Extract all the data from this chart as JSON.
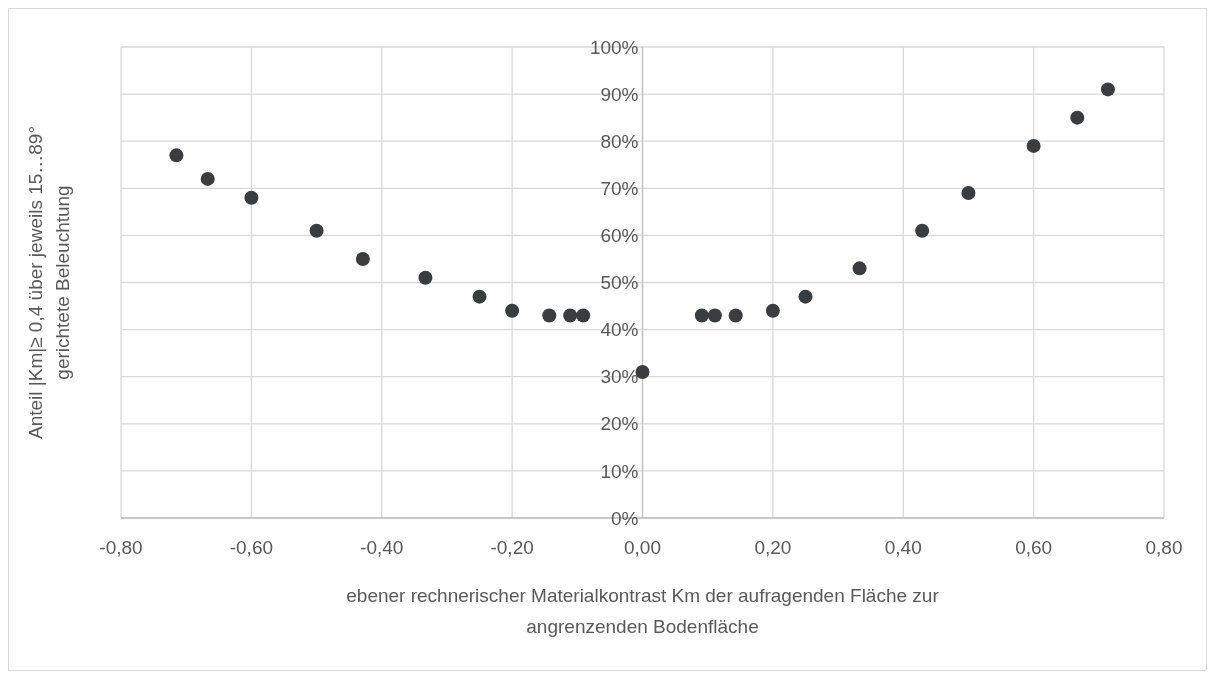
{
  "chart_data": {
    "type": "scatter",
    "xlabel": "ebener rechnerischer Materialkontrast Km der aufragenden Fläche zur\nangrenzenden Bodenfläche",
    "ylabel": "Anteil |Km|≥ 0,4 über jeweils 15…89°\ngerichtete Beleuchtung",
    "x": [
      -0.715,
      -0.667,
      -0.6,
      -0.5,
      -0.429,
      -0.333,
      -0.25,
      -0.2,
      -0.143,
      -0.111,
      -0.091,
      0,
      0.091,
      0.111,
      0.143,
      0.2,
      0.25,
      0.333,
      0.429,
      0.5,
      0.6,
      0.667,
      0.714
    ],
    "series": [
      {
        "color": "#3a3d3f",
        "values": [
          77,
          72,
          68,
          61,
          55,
          51,
          47,
          44,
          43,
          43,
          43,
          31,
          43,
          43,
          43,
          44,
          47,
          53,
          61,
          69,
          79,
          85,
          91
        ]
      }
    ],
    "xlim": [
      -0.8,
      0.8
    ],
    "xticks": [
      {
        "value": -0.8,
        "label": "-0,80"
      },
      {
        "value": -0.6,
        "label": "-0,60"
      },
      {
        "value": -0.4,
        "label": "-0,40"
      },
      {
        "value": -0.2,
        "label": "-0,20"
      },
      {
        "value": 0,
        "label": "0,00"
      },
      {
        "value": 0.2,
        "label": "0,20"
      },
      {
        "value": 0.4,
        "label": "0,40"
      },
      {
        "value": 0.6,
        "label": "0,60"
      },
      {
        "value": 0.8,
        "label": "0,80"
      }
    ],
    "ylim": [
      0,
      100
    ],
    "yticks": [
      {
        "value": 0,
        "label": "0%"
      },
      {
        "value": 10,
        "label": "10%"
      },
      {
        "value": 20,
        "label": "20%"
      },
      {
        "value": 30,
        "label": "30%"
      },
      {
        "value": 40,
        "label": "40%"
      },
      {
        "value": 50,
        "label": "50%"
      },
      {
        "value": 60,
        "label": "60%"
      },
      {
        "value": 70,
        "label": "70%"
      },
      {
        "value": 80,
        "label": "80%"
      },
      {
        "value": 90,
        "label": "90%"
      },
      {
        "value": 100,
        "label": "100%"
      }
    ],
    "grid": true,
    "marker": "circle"
  }
}
